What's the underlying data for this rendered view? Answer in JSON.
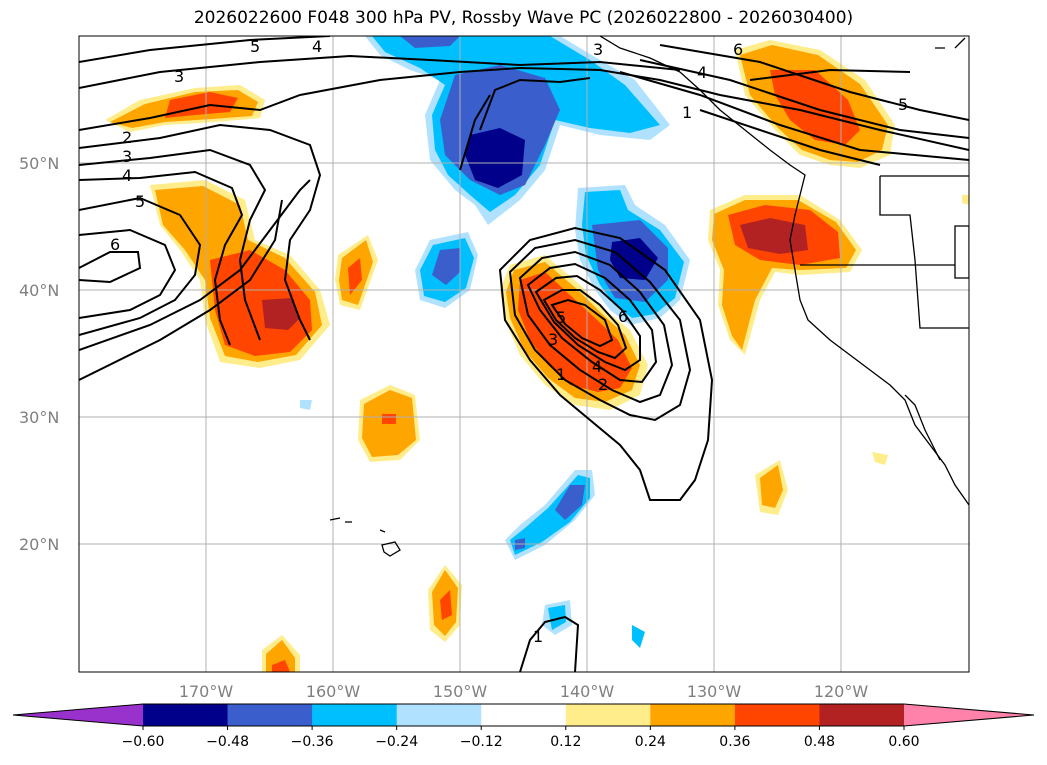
{
  "title": "2026022600 F048 300 hPa PV, Rossby Wave PC (2026022800 - 2026030400)",
  "map": {
    "lat_labels": [
      {
        "text": "50°N",
        "lat": 50
      },
      {
        "text": "40°N",
        "lat": 40
      },
      {
        "text": "30°N",
        "lat": 30
      },
      {
        "text": "20°N",
        "lat": 20
      }
    ],
    "lon_labels": [
      {
        "text": "170°W",
        "lon": -170
      },
      {
        "text": "160°W",
        "lon": -160
      },
      {
        "text": "150°W",
        "lon": -150
      },
      {
        "text": "140°W",
        "lon": -140
      },
      {
        "text": "130°W",
        "lon": -130
      },
      {
        "text": "120°W",
        "lon": -120
      }
    ],
    "contour_labels": [
      "5",
      "4",
      "3",
      "6",
      "4",
      "5",
      "2",
      "3",
      "4",
      "5",
      "6",
      "5",
      "4",
      "3",
      "2",
      "1",
      "6",
      "3",
      "1",
      "1"
    ]
  },
  "colorbar": {
    "ticks": [
      "−0.60",
      "−0.48",
      "−0.36",
      "−0.24",
      "−0.12",
      "0.12",
      "0.24",
      "0.36",
      "0.48",
      "0.60"
    ],
    "colors": [
      "#9932cc",
      "#00008b",
      "#3a5fcd",
      "#00bfff",
      "#b0e2ff",
      "#ffffff",
      "#ffec8b",
      "#ffa500",
      "#ff4500",
      "#b22222",
      "#ff82ab"
    ]
  }
}
